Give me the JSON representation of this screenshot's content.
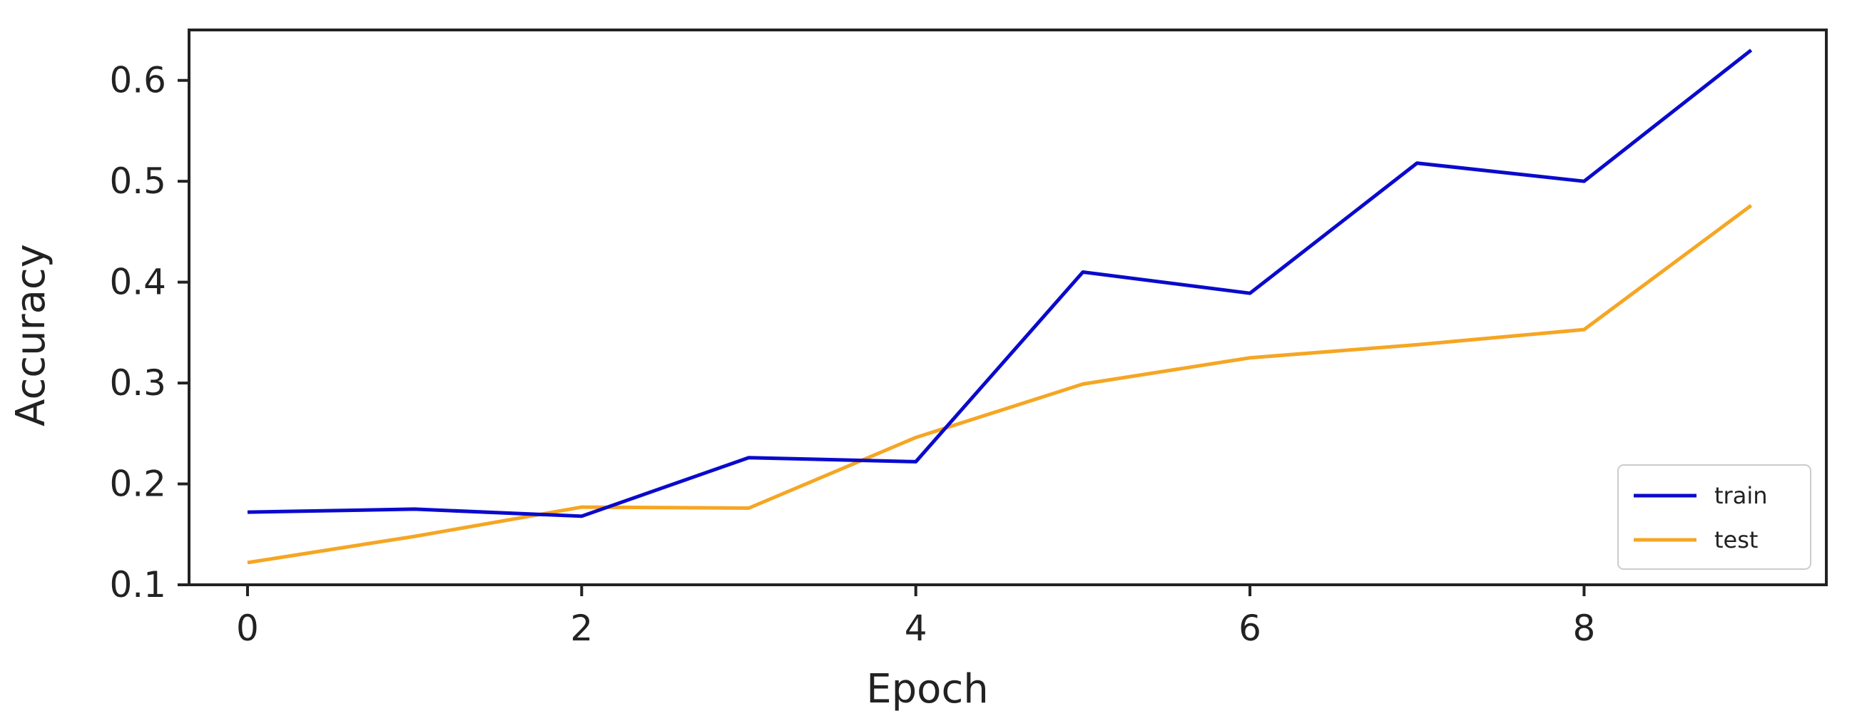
{
  "chart_data": {
    "type": "line",
    "title": "",
    "xlabel": "Epoch",
    "ylabel": "Accuracy",
    "xlim": [
      -0.35,
      9.45
    ],
    "ylim": [
      0.1,
      0.65
    ],
    "xticks": [
      0,
      2,
      4,
      6,
      8
    ],
    "yticks": [
      0.1,
      0.2,
      0.3,
      0.4,
      0.5,
      0.6
    ],
    "xtick_labels": [
      "0",
      "2",
      "4",
      "6",
      "8"
    ],
    "ytick_labels": [
      "0.1",
      "0.2",
      "0.3",
      "0.4",
      "0.5",
      "0.6"
    ],
    "grid": false,
    "legend_position": "bottom-right",
    "x": [
      0,
      1,
      2,
      3,
      4,
      5,
      6,
      7,
      8,
      9
    ],
    "series": [
      {
        "name": "train",
        "color": "#0a0acc",
        "values": [
          0.172,
          0.175,
          0.168,
          0.226,
          0.222,
          0.41,
          0.389,
          0.518,
          0.5,
          0.63
        ]
      },
      {
        "name": "test",
        "color": "#f5a623",
        "values": [
          0.122,
          0.148,
          0.177,
          0.176,
          0.246,
          0.299,
          0.325,
          0.338,
          0.353,
          0.476
        ]
      }
    ]
  }
}
